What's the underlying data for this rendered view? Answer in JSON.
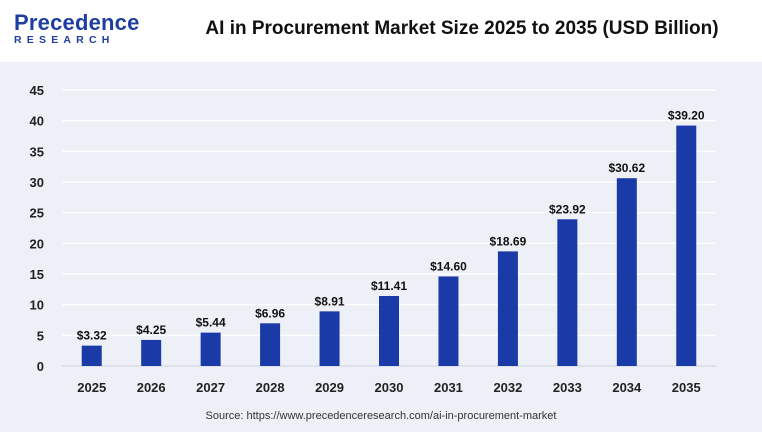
{
  "header": {
    "logo_word": "Precedence",
    "logo_sub": "RESEARCH",
    "title": "AI in Procurement Market Size 2025 to 2035 (USD Billion)"
  },
  "footer": {
    "source": "Source: https://www.precedenceresearch.com/ai-in-procurement-market"
  },
  "colors": {
    "bar": "#1a3aa8",
    "panel_background": "#eef0f7",
    "grid": "#ffffff",
    "brand": "#1f3fa0"
  },
  "chart_data": {
    "type": "bar",
    "title": "AI in Procurement Market Size 2025 to 2035 (USD Billion)",
    "xlabel": "",
    "ylabel": "",
    "categories": [
      "2025",
      "2026",
      "2027",
      "2028",
      "2029",
      "2030",
      "2031",
      "2032",
      "2033",
      "2034",
      "2035"
    ],
    "values": [
      3.32,
      4.25,
      5.44,
      6.96,
      8.91,
      11.41,
      14.6,
      18.69,
      23.92,
      30.62,
      39.2
    ],
    "value_labels": [
      "$3.32",
      "$4.25",
      "$5.44",
      "$6.96",
      "$8.91",
      "$11.41",
      "$14.60",
      "$18.69",
      "$23.92",
      "$30.62",
      "$39.20"
    ],
    "ylim": [
      0,
      45
    ],
    "yticks": [
      0,
      5,
      10,
      15,
      20,
      25,
      30,
      35,
      40,
      45
    ],
    "grid": true,
    "legend": "none"
  }
}
